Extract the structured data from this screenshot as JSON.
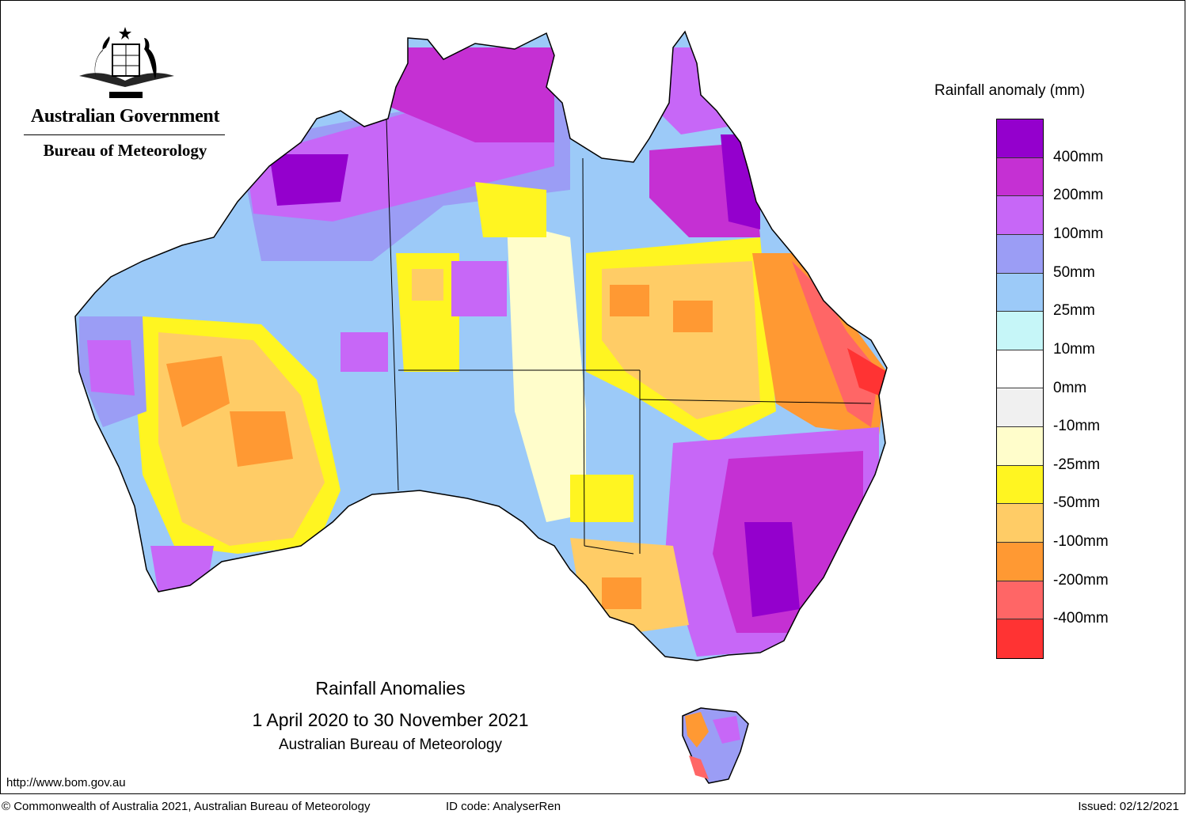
{
  "header": {
    "org_name": "Australian Government",
    "agency_name": "Bureau of Meteorology"
  },
  "logo": {
    "icon": "coat-of-arms-icon"
  },
  "legend": {
    "title": "Rainfall anomaly (mm)",
    "classes": [
      {
        "color": "#9400cd"
      },
      {
        "color": "#c530d3"
      },
      {
        "color": "#c767f7"
      },
      {
        "color": "#9b9df5"
      },
      {
        "color": "#9ccaf8"
      },
      {
        "color": "#c6f6f8"
      },
      {
        "color": "#ffffff"
      },
      {
        "color": "#f0f0f0"
      },
      {
        "color": "#fffdcb"
      },
      {
        "color": "#fff521"
      },
      {
        "color": "#ffcc66"
      },
      {
        "color": "#ff9933"
      },
      {
        "color": "#ff6666"
      },
      {
        "color": "#ff3333"
      }
    ],
    "labels": [
      "400mm",
      "200mm",
      "100mm",
      "50mm",
      "25mm",
      "10mm",
      "0mm",
      "-10mm",
      "-25mm",
      "-50mm",
      "-100mm",
      "-200mm",
      "-400mm"
    ]
  },
  "map": {
    "title": "Rainfall Anomalies",
    "period": "1 April 2020 to 30 November 2021",
    "source": "Australian Bureau of Meteorology"
  },
  "footer": {
    "url": "http://www.bom.gov.au",
    "copyright": "© Commonwealth of Australia 2021, Australian Bureau of Meteorology",
    "id_code": "ID code: AnalyserRen",
    "issued": "Issued: 02/12/2021"
  }
}
